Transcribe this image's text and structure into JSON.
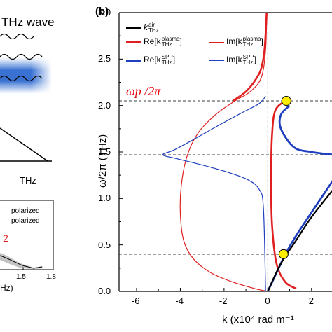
{
  "left_panel": {
    "thz_wave_label": "THz wave",
    "triangle_axis_label": "THz",
    "inset_legend": [
      "polarized",
      "polarized"
    ],
    "inset_red_label": "2",
    "inset_xticks": [
      "1.5",
      "1.8"
    ],
    "inset_xlabel_partial": "Hz)"
  },
  "panel_b": {
    "label": "(b)",
    "ylabel": "ω/2π (THz)",
    "xlabel": "k (x10⁴ rad m⁻¹",
    "wp_label": "ωp /2π",
    "legend": [
      {
        "text": "k",
        "sup": "air",
        "sub": "THz",
        "color": "#000000",
        "width": 3
      },
      {
        "text": "Re[k",
        "sup": "plasma",
        "sub": "THz",
        "suffix": "]",
        "color": "#e02020",
        "width": 3
      },
      {
        "text": "Im[k",
        "sup": "plasma",
        "sub": "THz",
        "suffix": "]",
        "color": "#e02020",
        "width": 1.2
      },
      {
        "text": "Re[k",
        "sup": "SPP",
        "sub": "THz",
        "suffix": "]",
        "color": "#1f3fbf",
        "width": 3
      },
      {
        "text": "Im[k",
        "sup": "SPP",
        "sub": "THz",
        "suffix": "]",
        "color": "#1f3fbf",
        "width": 1.2
      }
    ],
    "yticks": [
      "0.0",
      "0.5",
      "1.0",
      "1.5",
      "2.0",
      "2.5",
      "3.0"
    ],
    "xticks": [
      "-6",
      "-4",
      "-2",
      "0",
      "2"
    ],
    "colors": {
      "red": "#e02020",
      "blue": "#1f3fbf",
      "marker": "#ffee00"
    }
  },
  "chart_data": {
    "type": "line",
    "xlabel": "k (x10⁴ rad m⁻¹",
    "ylabel": "ω/2π (THz)",
    "xlim": [
      -6.8,
      3.0
    ],
    "ylim": [
      0,
      3.0
    ],
    "hlines": [
      2.05,
      1.47,
      0.4
    ],
    "series": [
      {
        "name": "Im[k_THz^plasma]",
        "x": [
          -0.05,
          -0.1,
          -0.3,
          -0.8,
          -1.5,
          -2.4,
          -3.2,
          -3.7,
          -3.95,
          -4.0,
          -3.85,
          -3.4,
          -2.6,
          -1.6,
          -0.6,
          0.0
        ],
        "y": [
          3.0,
          2.6,
          2.3,
          2.15,
          2.05,
          1.9,
          1.7,
          1.45,
          1.15,
          0.85,
          0.55,
          0.35,
          0.2,
          0.1,
          0.03,
          0.0
        ]
      },
      {
        "name": "Im[k_THz^SPP]",
        "x": [
          -0.1,
          -0.4,
          -1.2,
          -2.3,
          -3.5,
          -4.3,
          -4.8,
          -4.2,
          -3.0,
          -1.8,
          -0.9,
          -0.4,
          -0.2,
          -0.1
        ],
        "y": [
          2.1,
          2.02,
          1.92,
          1.78,
          1.62,
          1.52,
          1.47,
          1.43,
          1.36,
          1.28,
          1.2,
          1.1,
          0.9,
          0.0
        ]
      },
      {
        "name": "Re[k_THz^plasma] (upper)",
        "x": [
          -0.05,
          -0.15,
          -0.3,
          -0.5,
          -0.8,
          -1.1,
          -1.6
        ],
        "y": [
          3.0,
          2.6,
          2.4,
          2.3,
          2.2,
          2.13,
          2.05
        ]
      },
      {
        "name": "Re[k_THz^plasma] (right)",
        "x": [
          0.8,
          0.35,
          0.2,
          0.15,
          0.2,
          0.4,
          0.8,
          1.3
        ],
        "y": [
          2.05,
          1.95,
          1.7,
          1.2,
          0.7,
          0.3,
          0.1,
          0.03
        ]
      },
      {
        "name": "Re[k_THz^SPP]",
        "x": [
          0.0,
          0.3,
          0.6,
          0.8,
          1.3,
          2.0,
          3.0
        ],
        "y": [
          0.0,
          0.15,
          0.3,
          0.4,
          0.6,
          0.85,
          1.2
        ]
      },
      {
        "name": "Re[k_THz^SPP] (upper)",
        "x": [
          1.0,
          0.6,
          0.6,
          1.2,
          2.0,
          3.0
        ],
        "y": [
          2.0,
          1.9,
          1.75,
          1.55,
          1.5,
          1.47
        ]
      },
      {
        "name": "k_THz^air",
        "x": [
          0.0,
          0.6,
          1.3,
          2.0,
          3.0
        ],
        "y": [
          0.0,
          0.3,
          0.55,
          0.8,
          1.1
        ]
      }
    ],
    "markers": [
      {
        "x": 0.85,
        "y": 2.05
      },
      {
        "x": 0.72,
        "y": 0.4
      }
    ]
  }
}
